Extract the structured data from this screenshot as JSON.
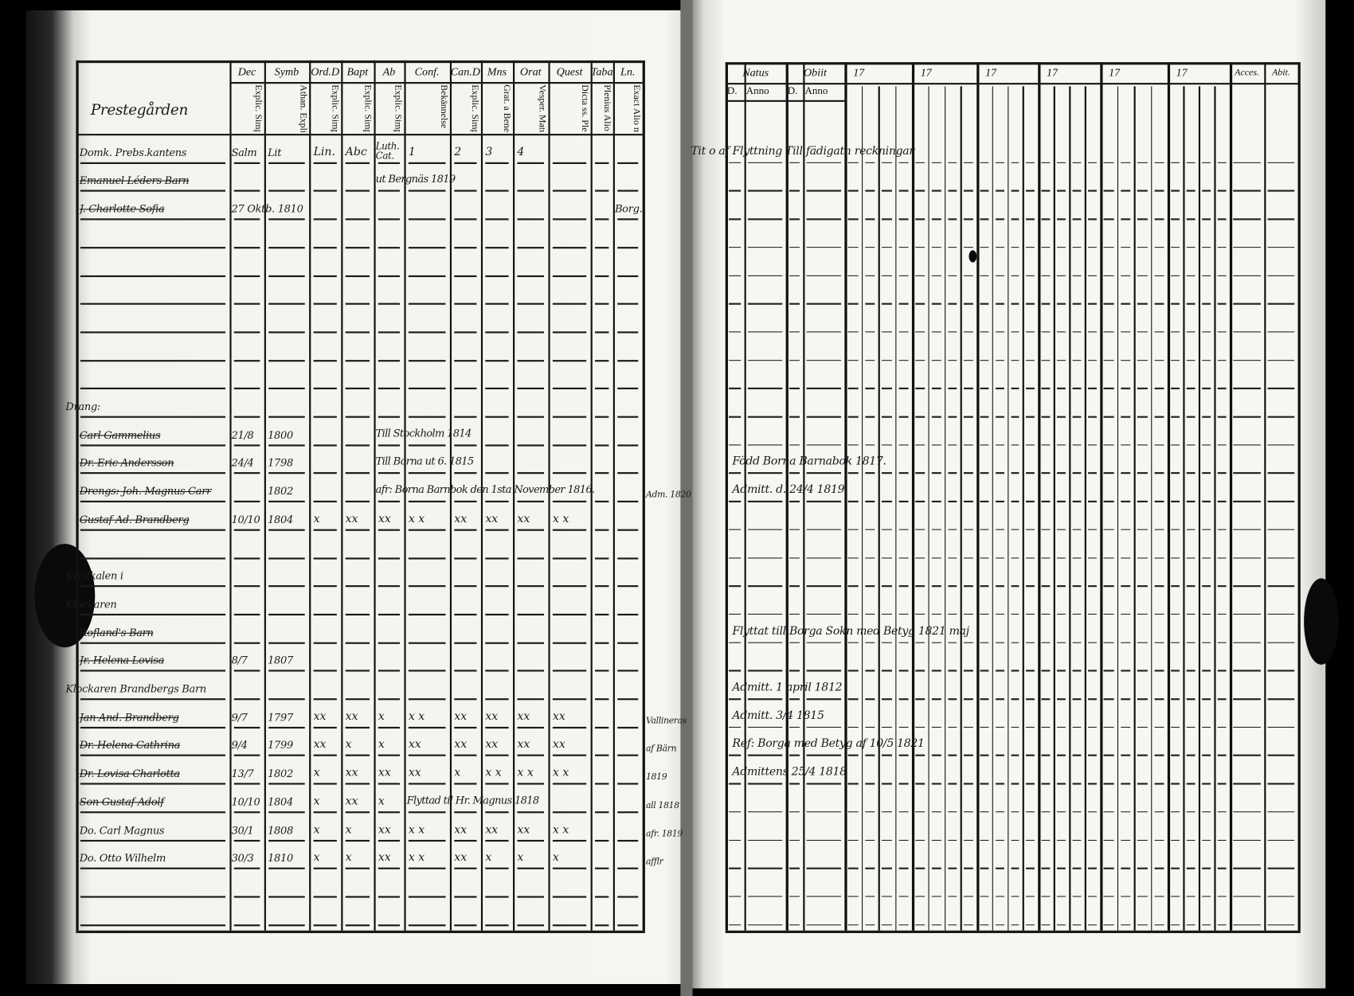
{
  "left_page": {
    "section_title": "Prestegården",
    "headers": [
      {
        "top": "",
        "sub": ""
      },
      {
        "top": "Dec",
        "sub": "Explic. Simpl."
      },
      {
        "top": "Symb",
        "sub": "Athan. Explic. Simpl."
      },
      {
        "top": "Ord.D",
        "sub": "Explic. Simpl."
      },
      {
        "top": "Bapt",
        "sub": "Explic. Simpl."
      },
      {
        "top": "Ab",
        "sub": "Explic. Simpl."
      },
      {
        "top": "Conf.",
        "sub": "Bekännelse"
      },
      {
        "top": "Can.D",
        "sub": "Explic. Simpl."
      },
      {
        "top": "Mns",
        "sub": "Grat. a Bened."
      },
      {
        "top": "Orat",
        "sub": "Vesper. Matut."
      },
      {
        "top": "Quest",
        "sub": "Dicta ss. Plenius. Alio m."
      },
      {
        "top": "Taba",
        "sub": "Plenius Alio m."
      },
      {
        "top": "Ln.",
        "sub": "Exact Alio m."
      }
    ],
    "rows": [
      {
        "name": "Domk. Prebs.kantens",
        "dec": "Salm",
        "symb": "Lit",
        "marks": [
          "Lin.",
          "Abc",
          "Luth. Cat.",
          "1",
          "2",
          "3",
          "4",
          "",
          "",
          ""
        ]
      },
      {
        "name": "Emanuel Léders Barn",
        "struck": true,
        "note": "ut Bergnäs 1819"
      },
      {
        "name": "J. Charlotte Sofia",
        "struck": true,
        "dec": "27 Oktb. 1810",
        "side": "Borg."
      },
      {},
      {},
      {},
      {},
      {},
      {},
      {
        "name": "Drang:",
        "label": true
      },
      {
        "name": "Carl Gammelius",
        "struck": true,
        "dec": "21/8",
        "symb": "1800",
        "note": "Till Stockholm 1814"
      },
      {
        "name": "Dr. Eric Andersson",
        "struck": true,
        "dec": "24/4",
        "symb": "1798",
        "note": "Till Borna ut 6. 1815"
      },
      {
        "name": "Drengs: Joh. Magnus Carr",
        "struck": true,
        "symb": "1802",
        "note": "afr: Borna Barnbok den 1sta November 1816."
      },
      {
        "name": "Gustaf Ad. Brandberg",
        "struck": true,
        "dec": "10/10",
        "symb": "1804",
        "marks": [
          "x",
          "xx",
          "xx",
          "x x",
          "xx",
          "xx",
          "xx",
          "x x",
          "",
          ""
        ]
      },
      {},
      {
        "name": "Kristkalen i",
        "label": true
      },
      {
        "name": "Klockaren",
        "label": true
      },
      {
        "name": "Rofland's Barn",
        "struck": true
      },
      {
        "name": "Jr. Helena Lovisa",
        "struck": true,
        "dec": "8/7",
        "symb": "1807"
      },
      {
        "name": "Klockaren Brandbergs Barn",
        "label": true
      },
      {
        "name": "Jan And. Brandberg",
        "struck": true,
        "dec": "9/7",
        "symb": "1797",
        "marks": [
          "xx",
          "xx",
          "x",
          "x x",
          "xx",
          "xx",
          "xx",
          "xx",
          "",
          ""
        ]
      },
      {
        "name": "Dr. Helena Cathrina",
        "struck": true,
        "dec": "9/4",
        "symb": "1799",
        "marks": [
          "xx",
          "x",
          "x",
          "xx",
          "xx",
          "xx",
          "xx",
          "xx",
          "",
          ""
        ]
      },
      {
        "name": "Dr. Lovisa Charlotta",
        "struck": true,
        "dec": "13/7",
        "symb": "1802",
        "marks": [
          "x",
          "xx",
          "xx",
          "xx",
          "x",
          "x x",
          "x x",
          "x x",
          "",
          ""
        ]
      },
      {
        "name": "Son Gustaf Adolf",
        "struck": true,
        "dec": "10/10",
        "symb": "1804",
        "marks": [
          "x",
          "xx",
          "x",
          "",
          "",
          "",
          "",
          "",
          "",
          ""
        ],
        "note": "Flyttad til Hr. Magnus 1818"
      },
      {
        "name": "Do. Carl Magnus",
        "dec": "30/1",
        "symb": "1808",
        "marks": [
          "x",
          "x",
          "xx",
          "x x",
          "xx",
          "xx",
          "xx",
          "x x",
          "",
          ""
        ]
      },
      {
        "name": "Do. Otto Wilhelm",
        "dec": "30/3",
        "symb": "1810",
        "marks": [
          "x",
          "x",
          "xx",
          "x x",
          "xx",
          "x",
          "x",
          "x",
          "",
          ""
        ]
      },
      {},
      {},
      {}
    ],
    "margin_notes": [
      {
        "row": 12,
        "text": "Adm. 1820"
      },
      {
        "row": 20,
        "text": "Vallineras"
      },
      {
        "row": 21,
        "text": "af Bärn"
      },
      {
        "row": 22,
        "text": "1819"
      },
      {
        "row": 23,
        "text": "all 1818"
      },
      {
        "row": 24,
        "text": "afr. 1819"
      },
      {
        "row": 25,
        "text": "afflr"
      }
    ]
  },
  "right_page": {
    "headers": {
      "natus": "Natus",
      "obiit": "Obiit",
      "day": "D.",
      "anno": "Anno",
      "years": [
        "17",
        "17",
        "17",
        "17",
        "17",
        "17"
      ],
      "accessit": "Acces.",
      "abiit": "Abit."
    },
    "notes": [
      {
        "row": 0,
        "text": "Tit o af Flyttning  Till fädigatn reckningar"
      },
      {
        "row": 11,
        "text": "Född Borna Barnabok 1817."
      },
      {
        "row": 12,
        "text": "Admitt. d. 24/4 1819"
      },
      {
        "row": 17,
        "text": "Flyttat till Borga Sokn med Betyg 1821 maj"
      },
      {
        "row": 19,
        "text": "Admitt. 1 april 1812"
      },
      {
        "row": 20,
        "text": "Admitt. 3/4 1815"
      },
      {
        "row": 21,
        "text": "Ref: Borga med Betyg af 10/5 1821"
      },
      {
        "row": 22,
        "text": "Admittens 25/4 1818"
      }
    ]
  }
}
